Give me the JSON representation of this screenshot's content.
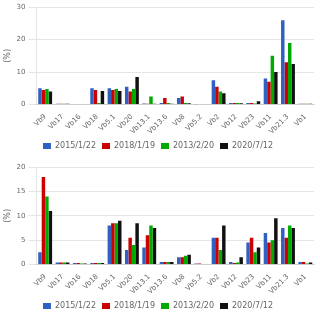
{
  "chart_data": [
    {
      "type": "bar",
      "categories": [
        "Vb9",
        "Vb17",
        "Vb16",
        "Vb18",
        "Vb5.1",
        "Vb20",
        "Vb13.1",
        "Vb13.6",
        "Vb8",
        "Vb5.2",
        "Vb2",
        "Vb12",
        "Vb23",
        "Vb11",
        "Vb21.3",
        "Vb1"
      ],
      "series": [
        {
          "name": "2015/1/22",
          "color": "#3060C0",
          "values": [
            5.0,
            0.2,
            0.0,
            5.0,
            5.0,
            5.5,
            0.3,
            0.5,
            2.0,
            0.1,
            7.5,
            0.5,
            0.5,
            8.0,
            26.0,
            0.2
          ]
        },
        {
          "name": "2018/1/19",
          "color": "#CC0000",
          "values": [
            4.5,
            0.2,
            0.0,
            4.5,
            4.5,
            4.0,
            0.2,
            2.0,
            2.5,
            0.0,
            5.5,
            0.5,
            0.5,
            7.0,
            13.0,
            0.2
          ]
        },
        {
          "name": "2013/2/20",
          "color": "#00AA00",
          "values": [
            4.8,
            0.2,
            0.0,
            0.5,
            4.8,
            4.8,
            2.5,
            0.5,
            0.5,
            0.0,
            4.0,
            0.5,
            0.3,
            15.0,
            19.0,
            0.2
          ]
        },
        {
          "name": "2020/7/12",
          "color": "#111111",
          "values": [
            4.0,
            0.2,
            0.0,
            4.2,
            4.2,
            8.5,
            0.2,
            0.2,
            0.4,
            0.0,
            3.5,
            0.4,
            1.0,
            10.0,
            12.5,
            0.2
          ]
        }
      ],
      "ylabel": "(%)",
      "ylim": [
        0,
        30
      ],
      "yticks": [
        0,
        10,
        20,
        30
      ],
      "grid": true,
      "legend": "bottom"
    },
    {
      "type": "bar",
      "categories": [
        "Vb9",
        "Vb17",
        "Vb16",
        "Vb18",
        "Vb5.1",
        "Vb20",
        "Vb13.1",
        "Vb13.6",
        "Vb8",
        "Vb5.2",
        "Vb2",
        "Vb12",
        "Vb23",
        "Vb11",
        "Vb21.3",
        "Vb1"
      ],
      "series": [
        {
          "name": "2015/1/22",
          "color": "#3060C0",
          "values": [
            2.5,
            0.4,
            0.3,
            0.3,
            8.0,
            3.0,
            3.5,
            0.5,
            1.5,
            0.2,
            5.5,
            0.5,
            4.5,
            6.5,
            7.5,
            0.5
          ]
        },
        {
          "name": "2018/1/19",
          "color": "#CC0000",
          "values": [
            18.0,
            0.4,
            0.3,
            0.3,
            8.5,
            5.5,
            6.0,
            0.5,
            1.5,
            0.2,
            5.5,
            0.3,
            5.5,
            4.5,
            5.5,
            0.5
          ]
        },
        {
          "name": "2013/2/20",
          "color": "#00AA00",
          "values": [
            14.0,
            0.4,
            0.2,
            0.3,
            8.5,
            4.0,
            8.0,
            0.5,
            1.8,
            0.1,
            3.0,
            0.4,
            2.5,
            5.0,
            8.0,
            0.2
          ]
        },
        {
          "name": "2020/7/12",
          "color": "#111111",
          "values": [
            11.0,
            0.4,
            0.2,
            0.3,
            9.0,
            8.5,
            7.5,
            0.5,
            2.0,
            0.0,
            8.0,
            1.5,
            3.5,
            9.5,
            7.5,
            0.4
          ]
        }
      ],
      "ylabel": "(%)",
      "ylim": [
        0,
        20
      ],
      "yticks": [
        0,
        5,
        10,
        15,
        20
      ],
      "grid": true,
      "legend": "bottom"
    }
  ]
}
